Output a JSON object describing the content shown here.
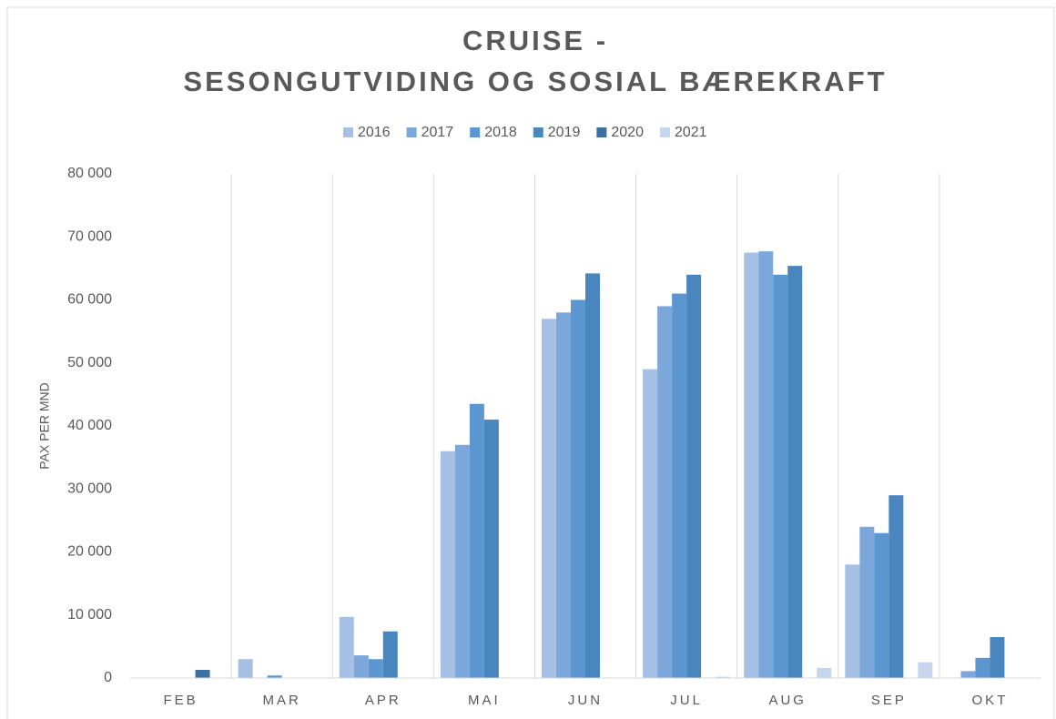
{
  "chart_data": {
    "type": "bar",
    "title": [
      "CRUISE -",
      "SESONGUTVIDING OG SOSIAL BÆREKRAFT"
    ],
    "y_label": "PAX PER MND",
    "categories": [
      "FEB",
      "MAR",
      "APR",
      "MAI",
      "JUN",
      "JUL",
      "AUG",
      "SEP",
      "OKT"
    ],
    "series": [
      {
        "name": "2016",
        "color": "#a5c0e4",
        "values": [
          0,
          3000,
          9700,
          36000,
          57000,
          49000,
          67500,
          18000,
          0
        ]
      },
      {
        "name": "2017",
        "color": "#7ba7da",
        "values": [
          0,
          0,
          3600,
          37000,
          58000,
          59000,
          67700,
          24000,
          1100
        ]
      },
      {
        "name": "2018",
        "color": "#5b96d0",
        "values": [
          0,
          400,
          3000,
          43500,
          60000,
          61000,
          64000,
          23000,
          3200
        ]
      },
      {
        "name": "2019",
        "color": "#4a86be",
        "values": [
          0,
          0,
          7400,
          41000,
          64200,
          64000,
          65400,
          29000,
          6500
        ]
      },
      {
        "name": "2020",
        "color": "#3d6fa3",
        "values": [
          1300,
          0,
          0,
          0,
          0,
          0,
          0,
          0,
          0
        ]
      },
      {
        "name": "2021",
        "color": "#c5d6ee",
        "values": [
          0,
          0,
          0,
          0,
          0,
          200,
          1600,
          2500,
          0
        ]
      }
    ],
    "ylim": [
      0,
      80000
    ],
    "yticks": [
      0,
      {
        "value": 10000,
        "label": "10 000"
      },
      {
        "value": 20000,
        "label": "20 000"
      },
      {
        "value": 30000,
        "label": "30 000"
      },
      {
        "value": 40000,
        "label": "40 000"
      },
      {
        "value": 50000,
        "label": "50 000"
      },
      {
        "value": 60000,
        "label": "60 000"
      },
      {
        "value": 70000,
        "label": "70 000"
      },
      {
        "value": 80000,
        "label": "80 000"
      }
    ],
    "legend": "top"
  }
}
